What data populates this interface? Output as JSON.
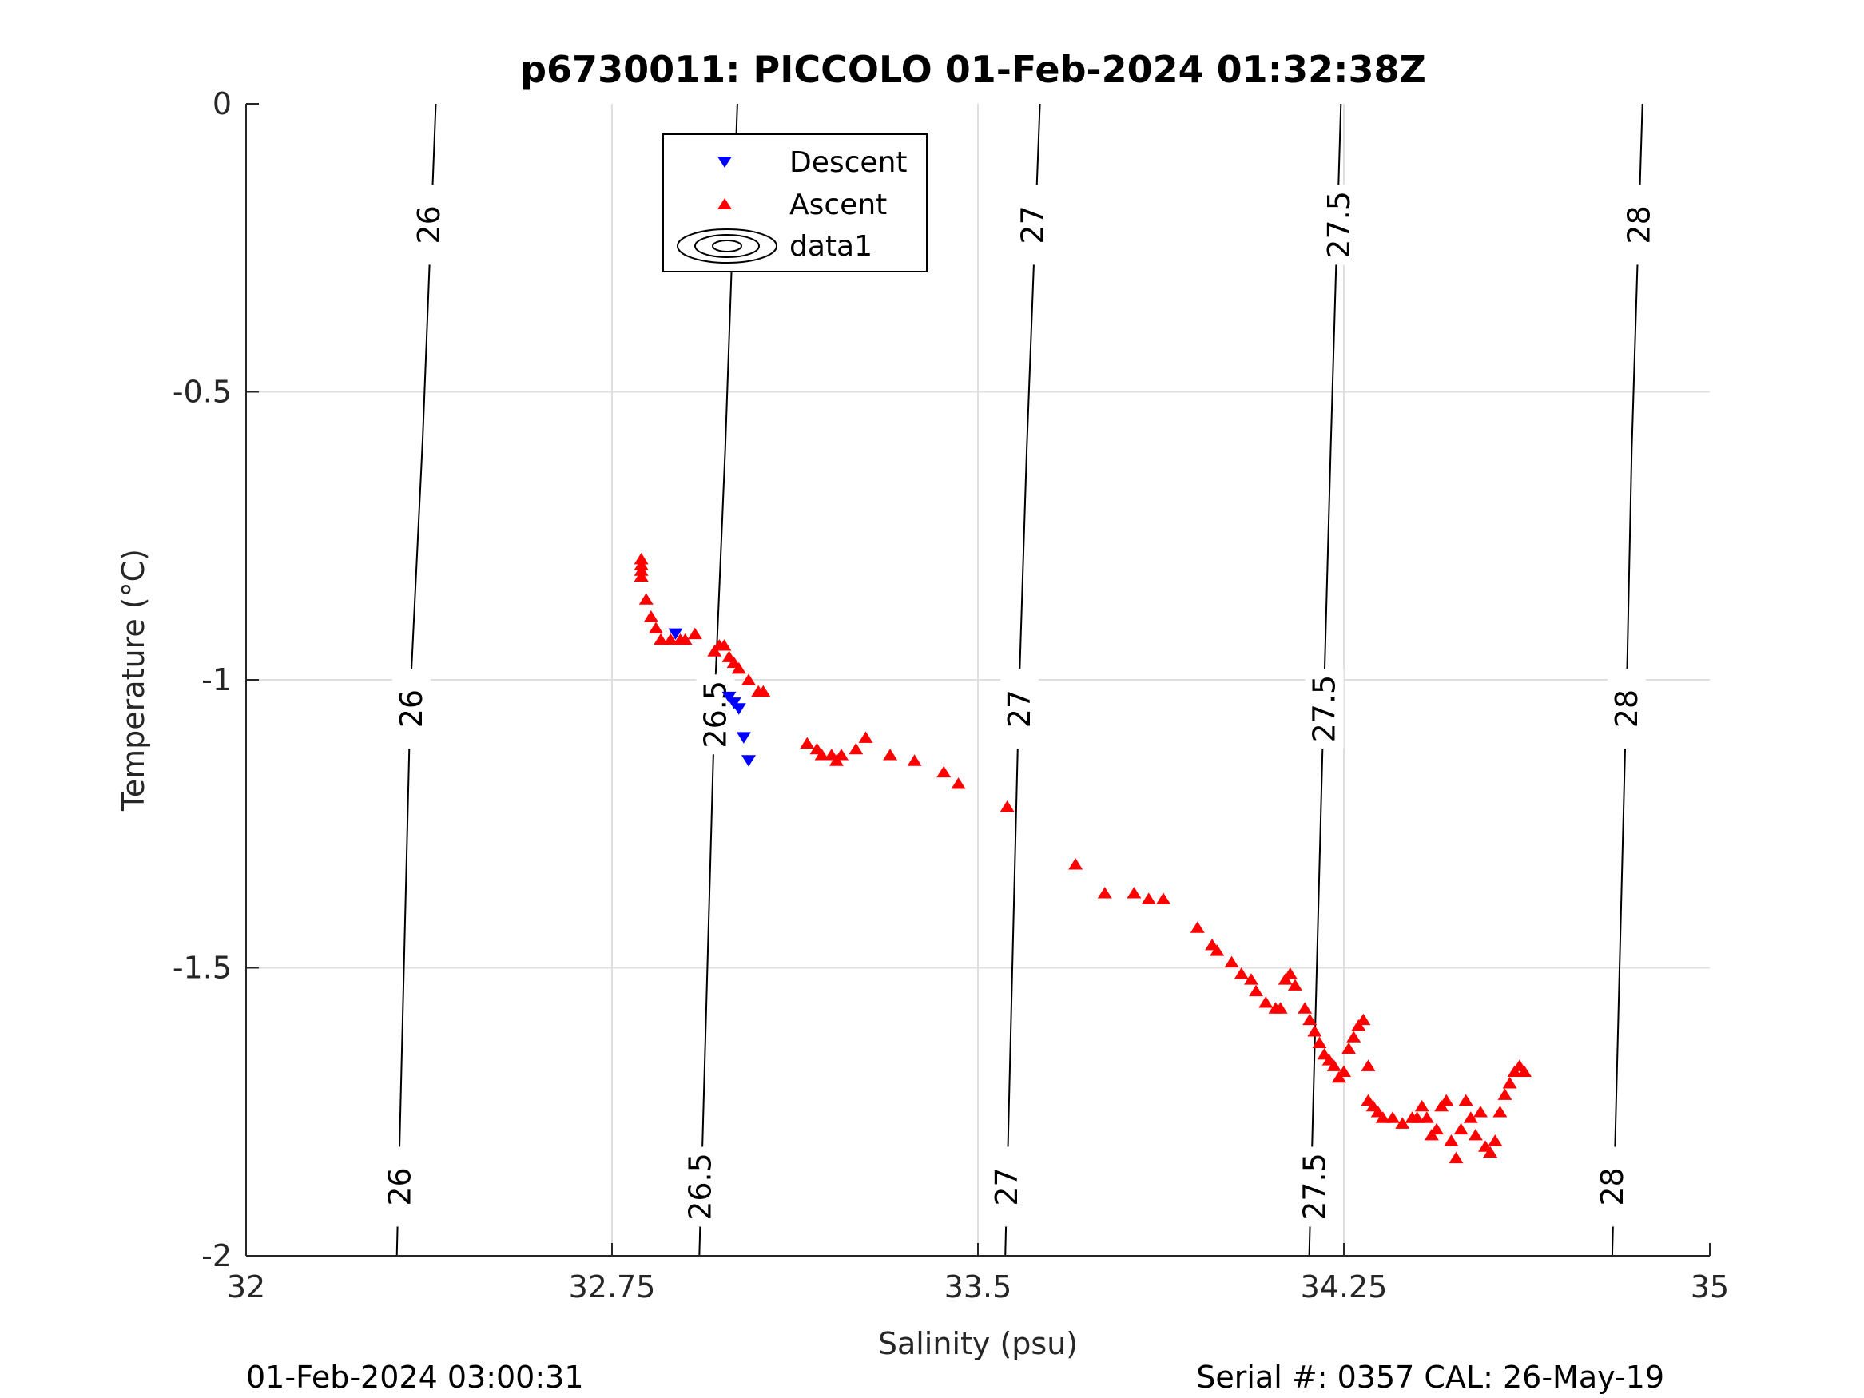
{
  "chart_data": {
    "type": "scatter",
    "title": "p6730011: PICCOLO 01-Feb-2024 01:32:38Z",
    "xlabel": "Salinity (psu)",
    "ylabel": "Temperature (°C)",
    "xlim": [
      32,
      35
    ],
    "ylim": [
      -2,
      0
    ],
    "xticks": [
      32,
      32.75,
      33.5,
      34.25,
      35
    ],
    "xtick_labels": [
      "32",
      "32.75",
      "33.5",
      "34.25",
      "35"
    ],
    "yticks": [
      0,
      -0.5,
      -1,
      -1.5,
      -2
    ],
    "ytick_labels": [
      "0",
      "-0.5",
      "-1",
      "-1.5",
      "-2"
    ],
    "grid": true,
    "legend_position": "top-center",
    "series": [
      {
        "name": "Descent",
        "marker": "triangle-down",
        "color": "#0000ff",
        "points": [
          [
            32.88,
            -0.92
          ],
          [
            32.99,
            -1.03
          ],
          [
            33.0,
            -1.04
          ],
          [
            33.01,
            -1.05
          ],
          [
            33.02,
            -1.1
          ],
          [
            33.03,
            -1.14
          ]
        ]
      },
      {
        "name": "Ascent",
        "marker": "triangle-up",
        "color": "#ff0000",
        "points": [
          [
            32.81,
            -0.79
          ],
          [
            32.81,
            -0.8
          ],
          [
            32.81,
            -0.81
          ],
          [
            32.81,
            -0.82
          ],
          [
            32.82,
            -0.86
          ],
          [
            32.83,
            -0.89
          ],
          [
            32.84,
            -0.91
          ],
          [
            32.85,
            -0.93
          ],
          [
            32.87,
            -0.93
          ],
          [
            32.89,
            -0.93
          ],
          [
            32.9,
            -0.93
          ],
          [
            32.92,
            -0.92
          ],
          [
            32.96,
            -0.95
          ],
          [
            32.97,
            -0.94
          ],
          [
            32.98,
            -0.94
          ],
          [
            32.99,
            -0.96
          ],
          [
            33.0,
            -0.97
          ],
          [
            33.01,
            -0.98
          ],
          [
            33.03,
            -1.0
          ],
          [
            33.05,
            -1.02
          ],
          [
            33.06,
            -1.02
          ],
          [
            33.15,
            -1.11
          ],
          [
            33.17,
            -1.12
          ],
          [
            33.18,
            -1.13
          ],
          [
            33.2,
            -1.13
          ],
          [
            33.21,
            -1.14
          ],
          [
            33.22,
            -1.13
          ],
          [
            33.25,
            -1.12
          ],
          [
            33.27,
            -1.1
          ],
          [
            33.32,
            -1.13
          ],
          [
            33.37,
            -1.14
          ],
          [
            33.43,
            -1.16
          ],
          [
            33.46,
            -1.18
          ],
          [
            33.56,
            -1.22
          ],
          [
            33.7,
            -1.32
          ],
          [
            33.76,
            -1.37
          ],
          [
            33.82,
            -1.37
          ],
          [
            33.85,
            -1.38
          ],
          [
            33.88,
            -1.38
          ],
          [
            33.95,
            -1.43
          ],
          [
            33.98,
            -1.46
          ],
          [
            33.99,
            -1.47
          ],
          [
            34.02,
            -1.49
          ],
          [
            34.04,
            -1.51
          ],
          [
            34.06,
            -1.52
          ],
          [
            34.07,
            -1.54
          ],
          [
            34.09,
            -1.56
          ],
          [
            34.11,
            -1.57
          ],
          [
            34.12,
            -1.57
          ],
          [
            34.13,
            -1.52
          ],
          [
            34.14,
            -1.51
          ],
          [
            34.15,
            -1.53
          ],
          [
            34.17,
            -1.57
          ],
          [
            34.18,
            -1.59
          ],
          [
            34.19,
            -1.61
          ],
          [
            34.2,
            -1.63
          ],
          [
            34.21,
            -1.65
          ],
          [
            34.22,
            -1.66
          ],
          [
            34.23,
            -1.67
          ],
          [
            34.24,
            -1.69
          ],
          [
            34.25,
            -1.68
          ],
          [
            34.26,
            -1.64
          ],
          [
            34.27,
            -1.62
          ],
          [
            34.28,
            -1.6
          ],
          [
            34.29,
            -1.59
          ],
          [
            34.3,
            -1.67
          ],
          [
            34.3,
            -1.73
          ],
          [
            34.31,
            -1.74
          ],
          [
            34.32,
            -1.75
          ],
          [
            34.33,
            -1.76
          ],
          [
            34.35,
            -1.76
          ],
          [
            34.37,
            -1.77
          ],
          [
            34.39,
            -1.76
          ],
          [
            34.4,
            -1.76
          ],
          [
            34.41,
            -1.74
          ],
          [
            34.42,
            -1.76
          ],
          [
            34.43,
            -1.79
          ],
          [
            34.44,
            -1.78
          ],
          [
            34.45,
            -1.74
          ],
          [
            34.46,
            -1.73
          ],
          [
            34.47,
            -1.8
          ],
          [
            34.48,
            -1.83
          ],
          [
            34.49,
            -1.78
          ],
          [
            34.5,
            -1.73
          ],
          [
            34.51,
            -1.76
          ],
          [
            34.52,
            -1.79
          ],
          [
            34.53,
            -1.75
          ],
          [
            34.54,
            -1.81
          ],
          [
            34.55,
            -1.82
          ],
          [
            34.56,
            -1.8
          ],
          [
            34.57,
            -1.75
          ],
          [
            34.58,
            -1.72
          ],
          [
            34.59,
            -1.7
          ],
          [
            34.6,
            -1.68
          ],
          [
            34.61,
            -1.67
          ],
          [
            34.62,
            -1.68
          ]
        ]
      }
    ],
    "contour_legend": {
      "name": "data1"
    },
    "density_contours": [
      {
        "label": "26",
        "points": [
          [
            32.389,
            0
          ],
          [
            32.362,
            -0.58
          ],
          [
            32.338,
            -1.0
          ],
          [
            32.309,
            -2.0
          ]
        ],
        "label_positions": [
          [
            32.375,
            -0.21
          ],
          [
            32.339,
            -1.05
          ],
          [
            32.315,
            -1.88
          ]
        ]
      },
      {
        "label": "26.5",
        "points": [
          [
            33.007,
            0
          ],
          [
            32.982,
            -0.6
          ],
          [
            32.962,
            -1.0
          ],
          [
            32.929,
            -2.0
          ]
        ],
        "label_positions": [
          [
            32.998,
            -0.19
          ],
          [
            32.962,
            -1.06
          ],
          [
            32.931,
            -1.88
          ]
        ]
      },
      {
        "label": "27",
        "points": [
          [
            33.627,
            0
          ],
          [
            33.6,
            -0.6
          ],
          [
            33.585,
            -1.0
          ],
          [
            33.556,
            -2.0
          ]
        ],
        "label_positions": [
          [
            33.612,
            -0.21
          ],
          [
            33.585,
            -1.05
          ],
          [
            33.559,
            -1.88
          ]
        ]
      },
      {
        "label": "27.5",
        "points": [
          [
            34.244,
            0
          ],
          [
            34.223,
            -0.6
          ],
          [
            34.21,
            -1.0
          ],
          [
            34.179,
            -2.0
          ]
        ],
        "label_positions": [
          [
            34.24,
            -0.21
          ],
          [
            34.21,
            -1.05
          ],
          [
            34.19,
            -1.88
          ]
        ]
      },
      {
        "label": "28",
        "points": [
          [
            34.862,
            0
          ],
          [
            34.84,
            -0.6
          ],
          [
            34.83,
            -1.0
          ],
          [
            34.8,
            -2.0
          ]
        ],
        "label_positions": [
          [
            34.855,
            -0.21
          ],
          [
            34.83,
            -1.05
          ],
          [
            34.8,
            -1.88
          ]
        ]
      }
    ]
  },
  "footer": {
    "timestamp": "01-Feb-2024 03:00:31",
    "serial_cal": "Serial #: 0357  CAL: 26-May-19"
  }
}
